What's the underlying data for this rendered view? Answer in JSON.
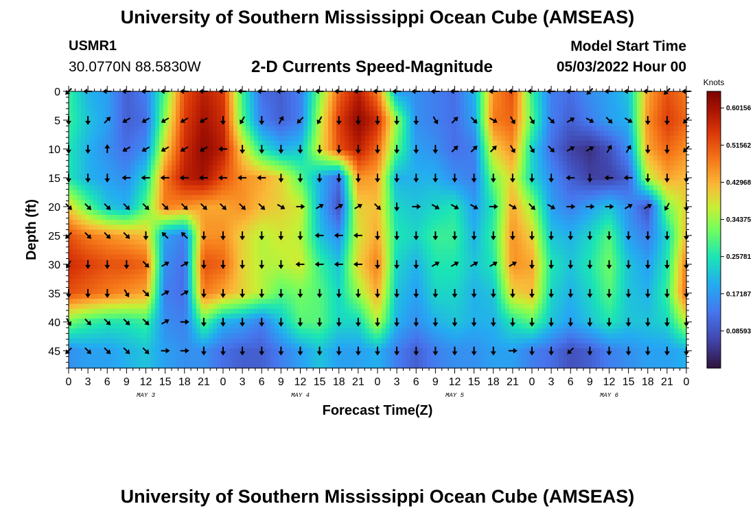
{
  "header": {
    "title": "University of Southern Mississippi Ocean Cube (AMSEAS)",
    "station": "USMR1",
    "coordinates": "30.0770N  88.5830W",
    "subtitle": "2-D Currents Speed-Magnitude",
    "model_start_label": "Model Start Time",
    "model_start_value": "05/03/2022 Hour 00"
  },
  "footer": {
    "title": "University of Southern Mississippi Ocean Cube (AMSEAS)"
  },
  "chart_data": {
    "type": "heatmap",
    "title": "2-D Currents Speed-Magnitude",
    "xlabel": "Forecast Time(Z)",
    "ylabel": "Depth (ft)",
    "x_tick_labels": [
      "0",
      "3",
      "6",
      "9",
      "12",
      "15",
      "18",
      "21",
      "0",
      "3",
      "6",
      "9",
      "12",
      "15",
      "18",
      "21",
      "0",
      "3",
      "6",
      "9",
      "12",
      "15",
      "18",
      "21",
      "0",
      "3",
      "6",
      "9",
      "12",
      "15",
      "18",
      "21",
      "0"
    ],
    "x_range_hours": [
      0,
      96
    ],
    "day_labels": [
      {
        "label": "MAY 3",
        "hour": 12
      },
      {
        "label": "MAY 4",
        "hour": 36
      },
      {
        "label": "MAY 5",
        "hour": 60
      },
      {
        "label": "MAY 6",
        "hour": 84
      }
    ],
    "y_ticks": [
      0,
      5,
      10,
      15,
      20,
      25,
      30,
      35,
      40,
      45
    ],
    "ylim": [
      0,
      48
    ],
    "y_inverted": true,
    "colorbar": {
      "units": "Knots",
      "min": 0.0,
      "max": 0.64,
      "tick_values": [
        0.08593,
        0.17187,
        0.25781,
        0.34375,
        0.42968,
        0.51562,
        0.60156
      ],
      "tick_labels": [
        "0.08593",
        "0.17187",
        "0.25781",
        "0.34375",
        "0.42968",
        "0.51562",
        "0.60156"
      ]
    },
    "depths_ft": [
      0,
      5,
      10,
      15,
      20,
      25,
      30,
      35,
      40,
      45
    ],
    "hours": [
      0,
      3,
      6,
      9,
      12,
      15,
      18,
      21,
      24,
      27,
      30,
      33,
      36,
      39,
      42,
      45,
      48,
      51,
      54,
      57,
      60,
      63,
      66,
      69,
      72,
      75,
      78,
      81,
      84,
      87,
      90,
      93,
      96
    ],
    "speed_knots": [
      [
        0.28,
        0.2,
        0.18,
        0.1,
        0.14,
        0.3,
        0.52,
        0.58,
        0.54,
        0.28,
        0.12,
        0.1,
        0.14,
        0.32,
        0.5,
        0.58,
        0.48,
        0.18,
        0.16,
        0.14,
        0.12,
        0.2,
        0.46,
        0.52,
        0.28,
        0.14,
        0.12,
        0.16,
        0.18,
        0.22,
        0.44,
        0.52,
        0.48
      ],
      [
        0.28,
        0.22,
        0.18,
        0.1,
        0.12,
        0.34,
        0.54,
        0.6,
        0.56,
        0.3,
        0.14,
        0.1,
        0.14,
        0.36,
        0.54,
        0.62,
        0.56,
        0.34,
        0.16,
        0.14,
        0.12,
        0.18,
        0.48,
        0.5,
        0.3,
        0.14,
        0.1,
        0.14,
        0.18,
        0.2,
        0.46,
        0.54,
        0.5
      ],
      [
        0.26,
        0.2,
        0.16,
        0.12,
        0.16,
        0.4,
        0.56,
        0.62,
        0.58,
        0.4,
        0.26,
        0.2,
        0.22,
        0.38,
        0.52,
        0.58,
        0.5,
        0.3,
        0.18,
        0.16,
        0.12,
        0.14,
        0.4,
        0.46,
        0.24,
        0.12,
        0.06,
        0.04,
        0.08,
        0.16,
        0.44,
        0.5,
        0.46
      ],
      [
        0.26,
        0.2,
        0.18,
        0.16,
        0.24,
        0.48,
        0.58,
        0.6,
        0.52,
        0.46,
        0.44,
        0.4,
        0.3,
        0.2,
        0.12,
        0.46,
        0.44,
        0.2,
        0.2,
        0.2,
        0.16,
        0.14,
        0.32,
        0.4,
        0.24,
        0.16,
        0.1,
        0.06,
        0.06,
        0.1,
        0.36,
        0.44,
        0.42
      ],
      [
        0.4,
        0.3,
        0.22,
        0.2,
        0.3,
        0.48,
        0.46,
        0.44,
        0.44,
        0.46,
        0.42,
        0.4,
        0.38,
        0.2,
        0.08,
        0.4,
        0.42,
        0.24,
        0.22,
        0.24,
        0.26,
        0.18,
        0.26,
        0.44,
        0.34,
        0.18,
        0.14,
        0.18,
        0.22,
        0.16,
        0.08,
        0.32,
        0.4
      ],
      [
        0.52,
        0.48,
        0.46,
        0.44,
        0.42,
        0.18,
        0.14,
        0.46,
        0.46,
        0.4,
        0.36,
        0.38,
        0.36,
        0.22,
        0.16,
        0.38,
        0.44,
        0.26,
        0.24,
        0.28,
        0.28,
        0.2,
        0.28,
        0.46,
        0.4,
        0.22,
        0.2,
        0.24,
        0.3,
        0.18,
        0.14,
        0.24,
        0.42
      ],
      [
        0.56,
        0.54,
        0.52,
        0.52,
        0.5,
        0.16,
        0.12,
        0.52,
        0.5,
        0.4,
        0.36,
        0.36,
        0.38,
        0.28,
        0.22,
        0.4,
        0.48,
        0.24,
        0.2,
        0.26,
        0.26,
        0.22,
        0.26,
        0.46,
        0.44,
        0.26,
        0.22,
        0.26,
        0.32,
        0.22,
        0.18,
        0.26,
        0.48
      ],
      [
        0.52,
        0.5,
        0.48,
        0.46,
        0.44,
        0.14,
        0.12,
        0.48,
        0.44,
        0.4,
        0.36,
        0.3,
        0.32,
        0.3,
        0.24,
        0.34,
        0.44,
        0.22,
        0.18,
        0.24,
        0.24,
        0.2,
        0.22,
        0.4,
        0.42,
        0.24,
        0.2,
        0.24,
        0.3,
        0.22,
        0.2,
        0.28,
        0.5
      ],
      [
        0.32,
        0.28,
        0.26,
        0.26,
        0.28,
        0.16,
        0.14,
        0.3,
        0.2,
        0.18,
        0.14,
        0.22,
        0.3,
        0.3,
        0.24,
        0.24,
        0.36,
        0.2,
        0.16,
        0.2,
        0.22,
        0.2,
        0.2,
        0.26,
        0.3,
        0.22,
        0.18,
        0.22,
        0.26,
        0.22,
        0.22,
        0.24,
        0.36
      ],
      [
        0.16,
        0.18,
        0.18,
        0.2,
        0.22,
        0.18,
        0.16,
        0.16,
        0.12,
        0.1,
        0.1,
        0.14,
        0.18,
        0.22,
        0.18,
        0.18,
        0.2,
        0.14,
        0.1,
        0.14,
        0.16,
        0.16,
        0.18,
        0.18,
        0.14,
        0.12,
        0.08,
        0.1,
        0.14,
        0.16,
        0.18,
        0.18,
        0.2
      ]
    ],
    "direction_deg": [
      [
        135,
        180,
        180,
        180,
        180,
        180,
        180,
        180,
        180,
        180,
        180,
        180,
        180,
        180,
        180,
        180,
        180,
        180,
        180,
        180,
        180,
        180,
        180,
        180,
        180,
        180,
        180,
        135,
        180,
        180,
        180,
        135,
        180
      ],
      [
        90,
        90,
        315,
        150,
        150,
        150,
        150,
        150,
        90,
        120,
        90,
        300,
        135,
        120,
        90,
        90,
        90,
        90,
        90,
        60,
        315,
        45,
        30,
        60,
        60,
        45,
        330,
        30,
        45,
        30,
        90,
        90,
        135
      ],
      [
        90,
        90,
        270,
        150,
        150,
        150,
        150,
        150,
        180,
        90,
        90,
        90,
        90,
        90,
        90,
        90,
        90,
        90,
        90,
        90,
        315,
        315,
        315,
        60,
        60,
        45,
        330,
        330,
        300,
        300,
        90,
        90,
        135
      ],
      [
        90,
        90,
        90,
        180,
        180,
        180,
        180,
        180,
        180,
        180,
        180,
        90,
        90,
        90,
        90,
        90,
        90,
        90,
        90,
        90,
        90,
        90,
        90,
        90,
        90,
        90,
        180,
        90,
        180,
        180,
        90,
        90,
        90
      ],
      [
        45,
        45,
        45,
        45,
        45,
        45,
        45,
        45,
        45,
        45,
        45,
        30,
        0,
        330,
        330,
        330,
        45,
        90,
        0,
        30,
        30,
        30,
        0,
        30,
        45,
        30,
        0,
        0,
        0,
        330,
        330,
        120,
        90
      ],
      [
        135,
        45,
        45,
        45,
        90,
        225,
        225,
        90,
        90,
        90,
        90,
        90,
        90,
        180,
        180,
        180,
        90,
        90,
        90,
        90,
        90,
        90,
        90,
        90,
        90,
        90,
        90,
        90,
        90,
        90,
        90,
        90,
        90
      ],
      [
        120,
        90,
        90,
        90,
        45,
        330,
        330,
        90,
        90,
        90,
        90,
        90,
        180,
        180,
        180,
        180,
        90,
        90,
        90,
        330,
        330,
        330,
        330,
        330,
        90,
        90,
        90,
        90,
        90,
        90,
        90,
        90,
        90
      ],
      [
        90,
        90,
        90,
        60,
        45,
        330,
        330,
        90,
        90,
        90,
        90,
        90,
        90,
        90,
        90,
        90,
        90,
        90,
        90,
        90,
        90,
        90,
        90,
        90,
        90,
        90,
        90,
        90,
        90,
        90,
        90,
        90,
        90
      ],
      [
        60,
        45,
        45,
        45,
        45,
        330,
        0,
        90,
        90,
        90,
        90,
        90,
        90,
        90,
        90,
        90,
        90,
        90,
        90,
        90,
        90,
        90,
        90,
        90,
        90,
        90,
        90,
        90,
        90,
        90,
        90,
        90,
        90
      ],
      [
        135,
        45,
        45,
        45,
        45,
        0,
        0,
        90,
        90,
        90,
        90,
        90,
        90,
        90,
        90,
        90,
        90,
        90,
        90,
        90,
        90,
        90,
        90,
        0,
        90,
        90,
        135,
        90,
        90,
        90,
        90,
        90,
        90
      ]
    ]
  }
}
